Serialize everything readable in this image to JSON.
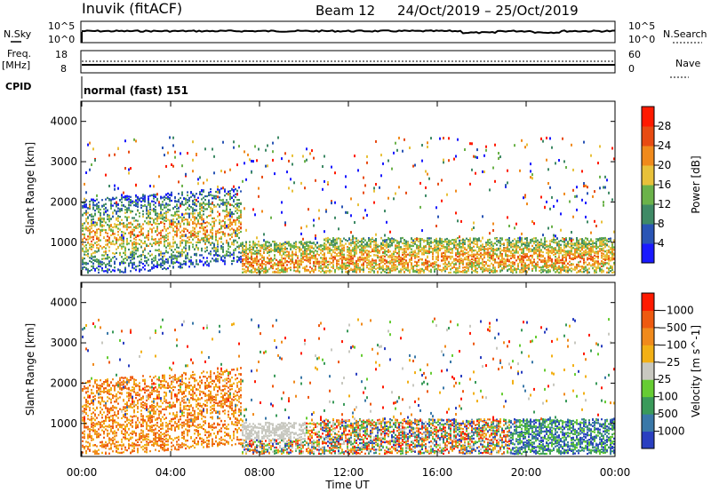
{
  "header": {
    "station": "Inuvik (fitACF)",
    "beam": "Beam 12",
    "dates": "24/Oct/2019 – 25/Oct/2019"
  },
  "strips": {
    "nsky_label": "N.Sky",
    "nsearch_label": "N.Search",
    "pow_hi": "10^5",
    "pow_lo": "10^0",
    "freq_label_1": "Freq.",
    "freq_label_2": "[MHz]",
    "freq_hi": "18",
    "freq_lo": "8",
    "nave_label": "Nave",
    "nave_hi": "60",
    "nave_lo": "0",
    "cpid_label": "CPID",
    "cpid_text": "normal (fast) 151"
  },
  "chart_data": [
    {
      "type": "heatmap",
      "title": "",
      "ylabel": "Slant Range [km]",
      "xlabel": "",
      "yticks": [
        1000,
        2000,
        3000,
        4000
      ],
      "ylim": [
        180,
        4500
      ],
      "colorbar": {
        "label": "Power [dB]",
        "ticks": [
          "4",
          "8",
          "12",
          "16",
          "20",
          "24",
          "28"
        ],
        "colors": [
          "#1a1aff",
          "#2a55b5",
          "#3f8a66",
          "#6bb24a",
          "#e8c13a",
          "#f08a1c",
          "#e84b12",
          "#ff1a00"
        ]
      }
    },
    {
      "type": "heatmap",
      "title": "",
      "ylabel": "Slant Range [km]",
      "xlabel": "Time UT",
      "yticks": [
        1000,
        2000,
        3000,
        4000
      ],
      "ylim": [
        180,
        4500
      ],
      "xticks": [
        "00:00",
        "04:00",
        "08:00",
        "12:00",
        "16:00",
        "20:00",
        "00:00"
      ],
      "colorbar": {
        "label": "Velocity [m s^-1]",
        "ticks": [
          "1000",
          "500",
          "100",
          "25",
          "−25",
          "−100",
          "−500",
          "−1000"
        ],
        "colors": [
          "#2a3fc0",
          "#3a78a8",
          "#3a9a5a",
          "#66cc33",
          "#c8c8c0",
          "#f2b016",
          "#f08a1c",
          "#ee5a10",
          "#ff1a00"
        ]
      }
    }
  ]
}
